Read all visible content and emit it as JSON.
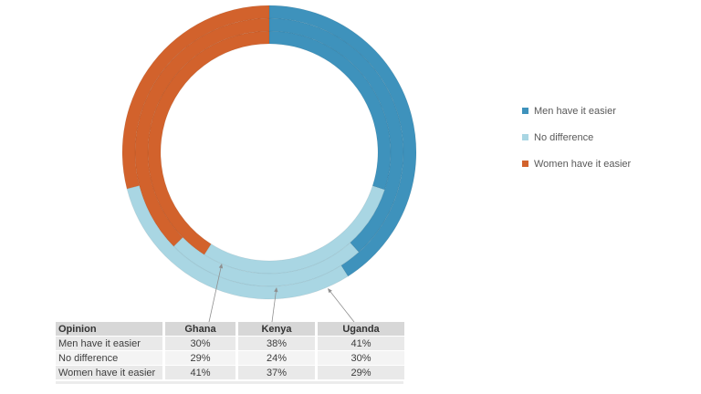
{
  "chart_data": {
    "type": "donut-multi-ring",
    "title": "",
    "categories": [
      "Men have it easier",
      "No difference",
      "Women have it easier"
    ],
    "series": [
      {
        "name": "Ghana",
        "ring": "inner",
        "values": [
          30,
          29,
          41
        ]
      },
      {
        "name": "Kenya",
        "ring": "middle",
        "values": [
          38,
          24,
          37
        ]
      },
      {
        "name": "Uganda",
        "ring": "outer",
        "values": [
          41,
          30,
          29
        ]
      }
    ],
    "colors": [
      "#3E92BC",
      "#A9D6E3",
      "#D2622C"
    ],
    "start_angle_deg": 0,
    "direction": "clockwise",
    "hole_ratio": 0.74,
    "legend_position": "right",
    "callouts_point_to": {
      "Ghana": "inner ring",
      "Kenya": "middle ring",
      "Uganda": "outer ring"
    }
  },
  "legend": {
    "items": [
      {
        "label": "Men have it easier",
        "color": "#3E92BC"
      },
      {
        "label": "No difference",
        "color": "#A9D6E3"
      },
      {
        "label": "Women have it easier",
        "color": "#D2622C"
      }
    ]
  },
  "table": {
    "header": [
      "Opinion",
      "Ghana",
      "Kenya",
      "Uganda"
    ],
    "rows": [
      [
        "Men have it easier",
        "30%",
        "38%",
        "41%"
      ],
      [
        "No difference",
        "29%",
        "24%",
        "30%"
      ],
      [
        "Women have it easier",
        "41%",
        "37%",
        "29%"
      ]
    ]
  }
}
